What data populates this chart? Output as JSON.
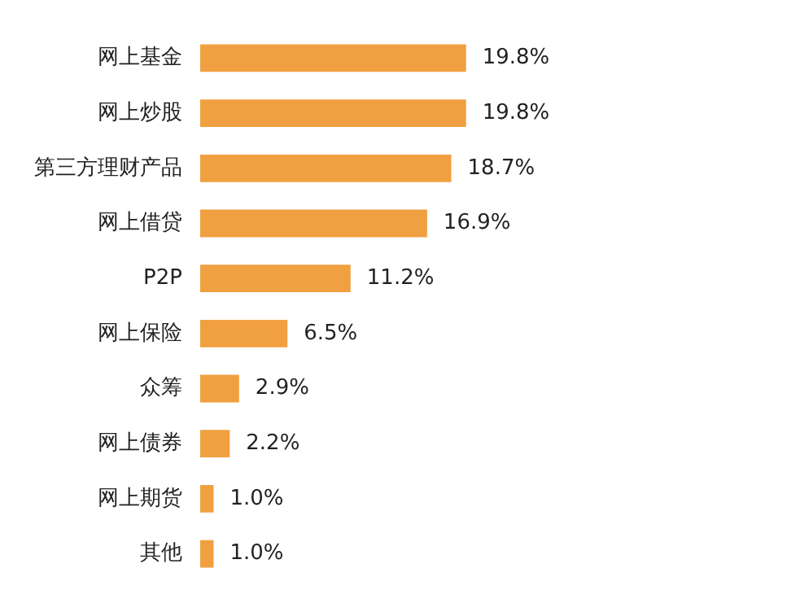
{
  "chart_data": {
    "type": "bar",
    "orientation": "horizontal",
    "categories": [
      "网上基金",
      "网上炒股",
      "第三方理财产品",
      "网上借贷",
      "P2P",
      "网上保险",
      "众筹",
      "网上债券",
      "网上期货",
      "其他"
    ],
    "values": [
      19.8,
      19.8,
      18.7,
      16.9,
      11.2,
      6.5,
      2.9,
      2.2,
      1.0,
      1.0
    ],
    "value_labels": [
      "19.8%",
      "19.8%",
      "18.7%",
      "16.9%",
      "11.2%",
      "6.5%",
      "2.9%",
      "2.2%",
      "1.0%",
      "1.0%"
    ],
    "color": "#f0a040",
    "tick_labels": "y",
    "legend": false
  }
}
